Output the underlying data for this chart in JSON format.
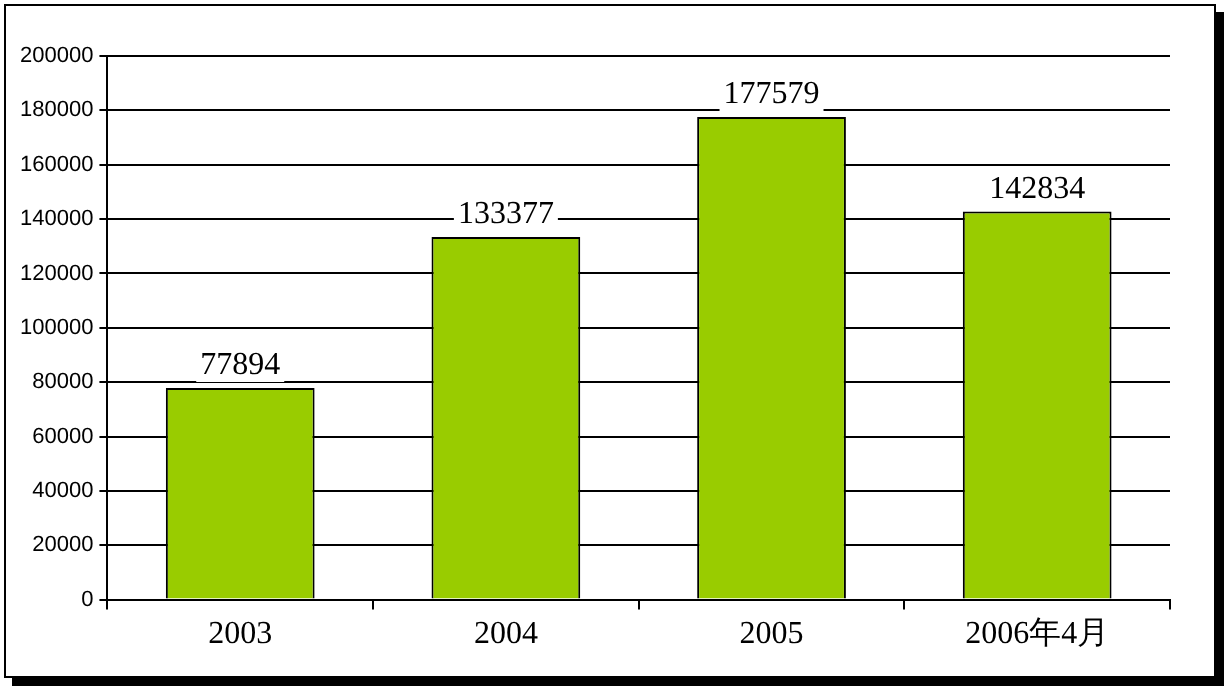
{
  "chart_data": {
    "type": "bar",
    "categories": [
      "2003",
      "2004",
      "2005",
      "2006年4月"
    ],
    "values": [
      77894,
      133377,
      177579,
      142834
    ],
    "color": "#99cc00",
    "ylim": [
      0,
      200000
    ],
    "yticks": [
      0,
      20000,
      40000,
      60000,
      80000,
      100000,
      120000,
      140000,
      160000,
      180000,
      200000
    ],
    "grid": "y",
    "data_labels": true,
    "legend": false
  }
}
